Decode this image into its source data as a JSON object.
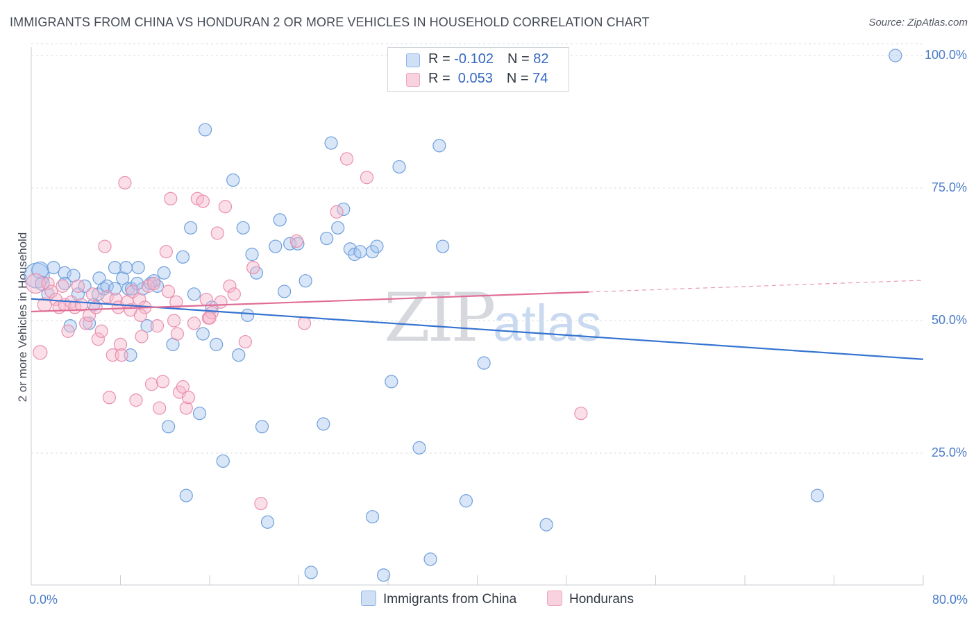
{
  "header": {
    "title": "IMMIGRANTS FROM CHINA VS HONDURAN 2 OR MORE VEHICLES IN HOUSEHOLD CORRELATION CHART",
    "source": "Source: ZipAtlas.com"
  },
  "watermark": {
    "zip": "ZIP",
    "atlas": "atlas"
  },
  "legend": {
    "rows": [
      {
        "r_label": "R = ",
        "r_value": "-0.102",
        "n_label": "N = ",
        "n_value": "82",
        "color": "#a9c8f0"
      },
      {
        "r_label": "R = ",
        "r_value": " 0.053",
        "n_label": "N = ",
        "n_value": "74",
        "color": "#f6b9cd"
      }
    ]
  },
  "bottom_legend": [
    {
      "label": "Immigrants from China",
      "color": "#a9c8f0"
    },
    {
      "label": "Hondurans",
      "color": "#f6b9cd"
    }
  ],
  "chart_data": {
    "type": "scatter",
    "ylabel": "2 or more Vehicles in Household",
    "xlim": [
      0,
      80
    ],
    "ylim": [
      0,
      102
    ],
    "x_tick_labels": [
      {
        "value": 0,
        "label": "0.0%"
      },
      {
        "value": 80,
        "label": "80.0%"
      }
    ],
    "y_tick_labels": [
      {
        "value": 25,
        "label": "25.0%"
      },
      {
        "value": 50,
        "label": "50.0%"
      },
      {
        "value": 75,
        "label": "75.0%"
      },
      {
        "value": 100,
        "label": "100.0%"
      }
    ],
    "x_minor_ticks": [
      0,
      8,
      16,
      24,
      32,
      40,
      48,
      56,
      64,
      72,
      80
    ],
    "grid": "horizontal dashed",
    "legend_position": "top-center",
    "series": [
      {
        "name": "Immigrants from China",
        "color": "#a9c8f0",
        "stroke": "#6f9fdc",
        "trend": {
          "x": [
            0,
            80
          ],
          "y": [
            54.1,
            42.7
          ],
          "color": "#3573d0",
          "dashed_after": null
        },
        "points": [
          [
            0.5,
            58.5,
            18
          ],
          [
            0.8,
            59.5,
            12
          ],
          [
            1.0,
            57.0,
            10
          ],
          [
            1.5,
            55.0,
            9
          ],
          [
            2.0,
            60.0,
            9
          ],
          [
            3.0,
            59.0,
            9
          ],
          [
            3.5,
            49.0,
            9
          ],
          [
            3.8,
            58.5,
            9
          ],
          [
            4.2,
            55.0,
            9
          ],
          [
            4.8,
            56.5,
            9
          ],
          [
            5.2,
            49.5,
            9
          ],
          [
            5.6,
            53.0,
            9
          ],
          [
            6.0,
            55.0,
            9
          ],
          [
            6.1,
            58.0,
            9
          ],
          [
            6.5,
            56.0,
            9
          ],
          [
            6.8,
            56.5,
            9
          ],
          [
            7.5,
            56.0,
            9
          ],
          [
            8.2,
            58.0,
            9
          ],
          [
            8.7,
            56.0,
            9
          ],
          [
            8.5,
            60.0,
            9
          ],
          [
            8.9,
            43.5,
            9
          ],
          [
            9.0,
            56.0,
            9
          ],
          [
            9.6,
            60.0,
            9
          ],
          [
            10.0,
            56.0,
            9
          ],
          [
            10.4,
            49.0,
            9
          ],
          [
            10.7,
            57.0,
            9
          ],
          [
            11.3,
            56.5,
            9
          ],
          [
            11.9,
            59.0,
            9
          ],
          [
            12.3,
            30.0,
            9
          ],
          [
            12.7,
            45.5,
            9
          ],
          [
            13.6,
            62.0,
            9
          ],
          [
            13.9,
            17.0,
            9
          ],
          [
            14.3,
            67.5,
            9
          ],
          [
            14.6,
            55.0,
            9
          ],
          [
            15.1,
            32.5,
            9
          ],
          [
            15.4,
            47.5,
            9
          ],
          [
            15.6,
            86.0,
            9
          ],
          [
            16.2,
            52.5,
            9
          ],
          [
            16.6,
            45.5,
            9
          ],
          [
            17.2,
            23.5,
            9
          ],
          [
            18.1,
            76.5,
            9
          ],
          [
            18.6,
            43.5,
            9
          ],
          [
            19.0,
            67.5,
            9
          ],
          [
            19.4,
            51.0,
            9
          ],
          [
            19.8,
            62.5,
            9
          ],
          [
            20.2,
            59.0,
            9
          ],
          [
            20.7,
            30.0,
            9
          ],
          [
            21.2,
            12.0,
            9
          ],
          [
            21.9,
            64.0,
            9
          ],
          [
            22.3,
            69.0,
            9
          ],
          [
            22.7,
            55.5,
            9
          ],
          [
            23.2,
            64.5,
            9
          ],
          [
            23.9,
            64.5,
            9
          ],
          [
            24.6,
            57.5,
            9
          ],
          [
            25.1,
            2.5,
            9
          ],
          [
            26.2,
            30.5,
            9
          ],
          [
            26.5,
            65.5,
            9
          ],
          [
            26.9,
            83.5,
            9
          ],
          [
            27.5,
            67.5,
            9
          ],
          [
            28.0,
            71.0,
            9
          ],
          [
            28.6,
            63.5,
            9
          ],
          [
            29.0,
            62.5,
            9
          ],
          [
            29.5,
            63.0,
            9
          ],
          [
            30.6,
            63.0,
            9
          ],
          [
            30.6,
            13.0,
            9
          ],
          [
            31.0,
            64.0,
            9
          ],
          [
            31.6,
            2.0,
            9
          ],
          [
            32.3,
            38.5,
            9
          ],
          [
            33.0,
            79.0,
            9
          ],
          [
            34.8,
            26.0,
            9
          ],
          [
            35.8,
            5.0,
            9
          ],
          [
            36.6,
            83.0,
            9
          ],
          [
            36.9,
            64.0,
            9
          ],
          [
            39.0,
            16.0,
            9
          ],
          [
            40.6,
            42.0,
            9
          ],
          [
            46.2,
            11.5,
            9
          ],
          [
            70.5,
            17.0,
            9
          ],
          [
            77.5,
            100.0,
            9
          ],
          [
            7.5,
            60.0,
            9
          ],
          [
            11.0,
            57.5,
            9
          ],
          [
            3.0,
            57.0,
            9
          ],
          [
            9.5,
            57.0,
            9
          ]
        ]
      },
      {
        "name": "Hondurans",
        "color": "#f6b9cd",
        "stroke": "#e990ae",
        "trend": {
          "x": [
            0,
            50,
            80
          ],
          "y": [
            51.7,
            55.4,
            57.6
          ],
          "color": "#e06e96",
          "dashed_after": 50
        },
        "points": [
          [
            0.4,
            57.0,
            14
          ],
          [
            0.8,
            44.0,
            10
          ],
          [
            1.2,
            53.0,
            10
          ],
          [
            1.5,
            57.0,
            9
          ],
          [
            1.8,
            55.5,
            9
          ],
          [
            2.2,
            54.0,
            9
          ],
          [
            2.5,
            52.5,
            9
          ],
          [
            2.8,
            56.5,
            9
          ],
          [
            3.0,
            53.0,
            9
          ],
          [
            3.3,
            48.0,
            9
          ],
          [
            3.6,
            53.5,
            9
          ],
          [
            3.9,
            52.5,
            9
          ],
          [
            4.2,
            56.5,
            9
          ],
          [
            4.5,
            53.0,
            9
          ],
          [
            4.9,
            49.5,
            9
          ],
          [
            5.2,
            51.0,
            9
          ],
          [
            5.5,
            55.0,
            9
          ],
          [
            5.8,
            52.5,
            9
          ],
          [
            6.0,
            46.5,
            9
          ],
          [
            6.3,
            48.0,
            9
          ],
          [
            6.6,
            64.0,
            9
          ],
          [
            6.8,
            54.5,
            9
          ],
          [
            7.0,
            35.5,
            9
          ],
          [
            7.3,
            43.5,
            9
          ],
          [
            7.6,
            54.0,
            9
          ],
          [
            7.8,
            52.5,
            9
          ],
          [
            8.0,
            45.5,
            9
          ],
          [
            8.1,
            43.5,
            9
          ],
          [
            8.4,
            76.0,
            9
          ],
          [
            8.6,
            53.5,
            9
          ],
          [
            8.9,
            52.0,
            9
          ],
          [
            9.1,
            55.5,
            9
          ],
          [
            9.4,
            35.0,
            9
          ],
          [
            9.7,
            54.0,
            9
          ],
          [
            9.9,
            47.0,
            9
          ],
          [
            10.2,
            52.5,
            9
          ],
          [
            10.5,
            56.5,
            9
          ],
          [
            10.8,
            38.0,
            9
          ],
          [
            11.0,
            57.0,
            9
          ],
          [
            11.3,
            49.0,
            9
          ],
          [
            11.5,
            33.5,
            9
          ],
          [
            11.8,
            38.5,
            9
          ],
          [
            12.1,
            63.0,
            9
          ],
          [
            12.3,
            55.5,
            9
          ],
          [
            12.5,
            73.0,
            9
          ],
          [
            12.8,
            50.0,
            9
          ],
          [
            13.1,
            47.5,
            9
          ],
          [
            13.3,
            36.5,
            9
          ],
          [
            13.6,
            37.5,
            9
          ],
          [
            13.9,
            33.5,
            9
          ],
          [
            14.1,
            35.5,
            9
          ],
          [
            14.6,
            49.5,
            9
          ],
          [
            14.9,
            73.0,
            9
          ],
          [
            15.4,
            72.5,
            9
          ],
          [
            15.7,
            54.0,
            9
          ],
          [
            15.9,
            50.5,
            9
          ],
          [
            16.2,
            51.5,
            9
          ],
          [
            16.7,
            66.5,
            9
          ],
          [
            17.4,
            71.5,
            9
          ],
          [
            17.8,
            56.5,
            9
          ],
          [
            18.2,
            55.0,
            9
          ],
          [
            19.2,
            46.0,
            9
          ],
          [
            20.6,
            15.5,
            9
          ],
          [
            23.8,
            65.0,
            9
          ],
          [
            24.5,
            49.5,
            9
          ],
          [
            27.4,
            70.5,
            9
          ],
          [
            28.3,
            80.5,
            9
          ],
          [
            30.1,
            77.0,
            9
          ],
          [
            49.3,
            32.5,
            9
          ],
          [
            13.0,
            53.5,
            9
          ],
          [
            16.0,
            50.5,
            9
          ],
          [
            9.8,
            51.0,
            9
          ],
          [
            17.0,
            53.5,
            9
          ],
          [
            19.9,
            60.0,
            9
          ]
        ]
      }
    ]
  }
}
